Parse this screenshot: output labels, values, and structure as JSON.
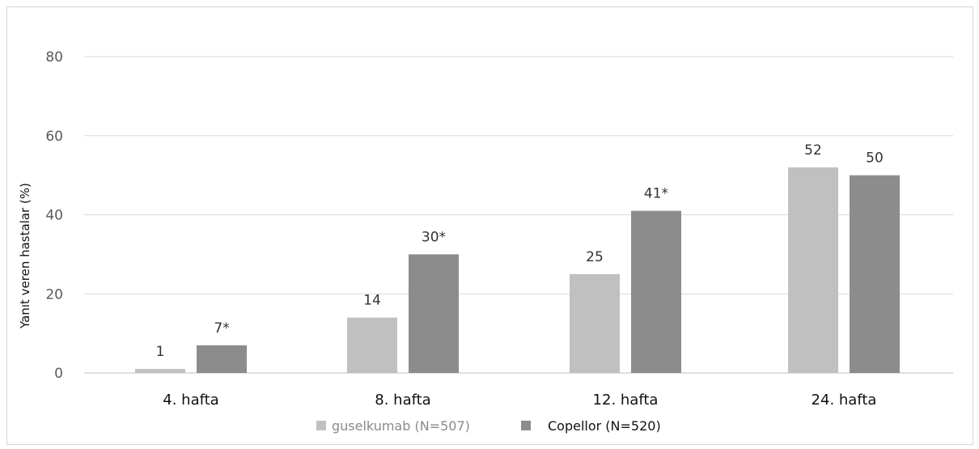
{
  "chart_data": {
    "type": "bar",
    "categories": [
      "4. hafta",
      "8. hafta",
      "12. hafta",
      "24. hafta"
    ],
    "series": [
      {
        "name": "guselkumab (N=507)",
        "values": [
          1,
          14,
          25,
          52
        ],
        "labels": [
          "1",
          "14",
          "25",
          "52"
        ],
        "color": "#c0c0c0",
        "legend_text_color": "#8a8a8a"
      },
      {
        "name": "Copellor (N=520)",
        "values": [
          7,
          30,
          41,
          50
        ],
        "labels": [
          "7*",
          "30*",
          "41*",
          "50"
        ],
        "color": "#8c8c8c",
        "legend_text_color": "#111111"
      }
    ],
    "ylabel": "Yanıt veren hastalar (%)",
    "xlabel": "",
    "ylim": [
      0,
      80
    ],
    "yticks": [
      0,
      20,
      40,
      60,
      80
    ],
    "grid": true,
    "legend_position": "bottom"
  }
}
